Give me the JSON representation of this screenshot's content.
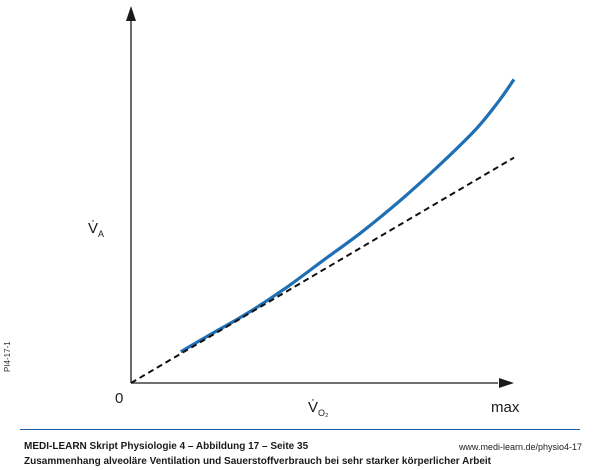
{
  "chart_data": {
    "type": "line",
    "title": "",
    "xlabel": "V̇",
    "xlabel_sub": "O₂",
    "ylabel": "V̇",
    "ylabel_sub": "A",
    "origin_label": "0",
    "x_end_label": "max",
    "xlim": [
      0,
      1
    ],
    "ylim": [
      0,
      1
    ],
    "grid": false,
    "legend": "none",
    "series": [
      {
        "style": "solid",
        "color": "#1f6fb5",
        "x": [
          0.13,
          0.2,
          0.3,
          0.4,
          0.5,
          0.6,
          0.7,
          0.8,
          0.9,
          0.96,
          1.0
        ],
        "y": [
          0.1,
          0.15,
          0.22,
          0.3,
          0.39,
          0.48,
          0.58,
          0.69,
          0.81,
          0.9,
          0.97
        ]
      },
      {
        "style": "dashed",
        "color": "#111111",
        "x": [
          0.0,
          1.0
        ],
        "y": [
          0.0,
          0.72
        ]
      }
    ]
  },
  "side_code": "PI4-17-1",
  "footer": {
    "title": "MEDI-LEARN Skript Physiologie 4 – Abbildung 17 – Seite 35",
    "url": "www.medi-learn.de/physio4-17",
    "caption": "Zusammenhang alveoläre Ventilation und Sauerstoffverbrauch bei sehr starker körperlicher Arbeit"
  },
  "colors": {
    "accent": "#1f5fa8"
  }
}
